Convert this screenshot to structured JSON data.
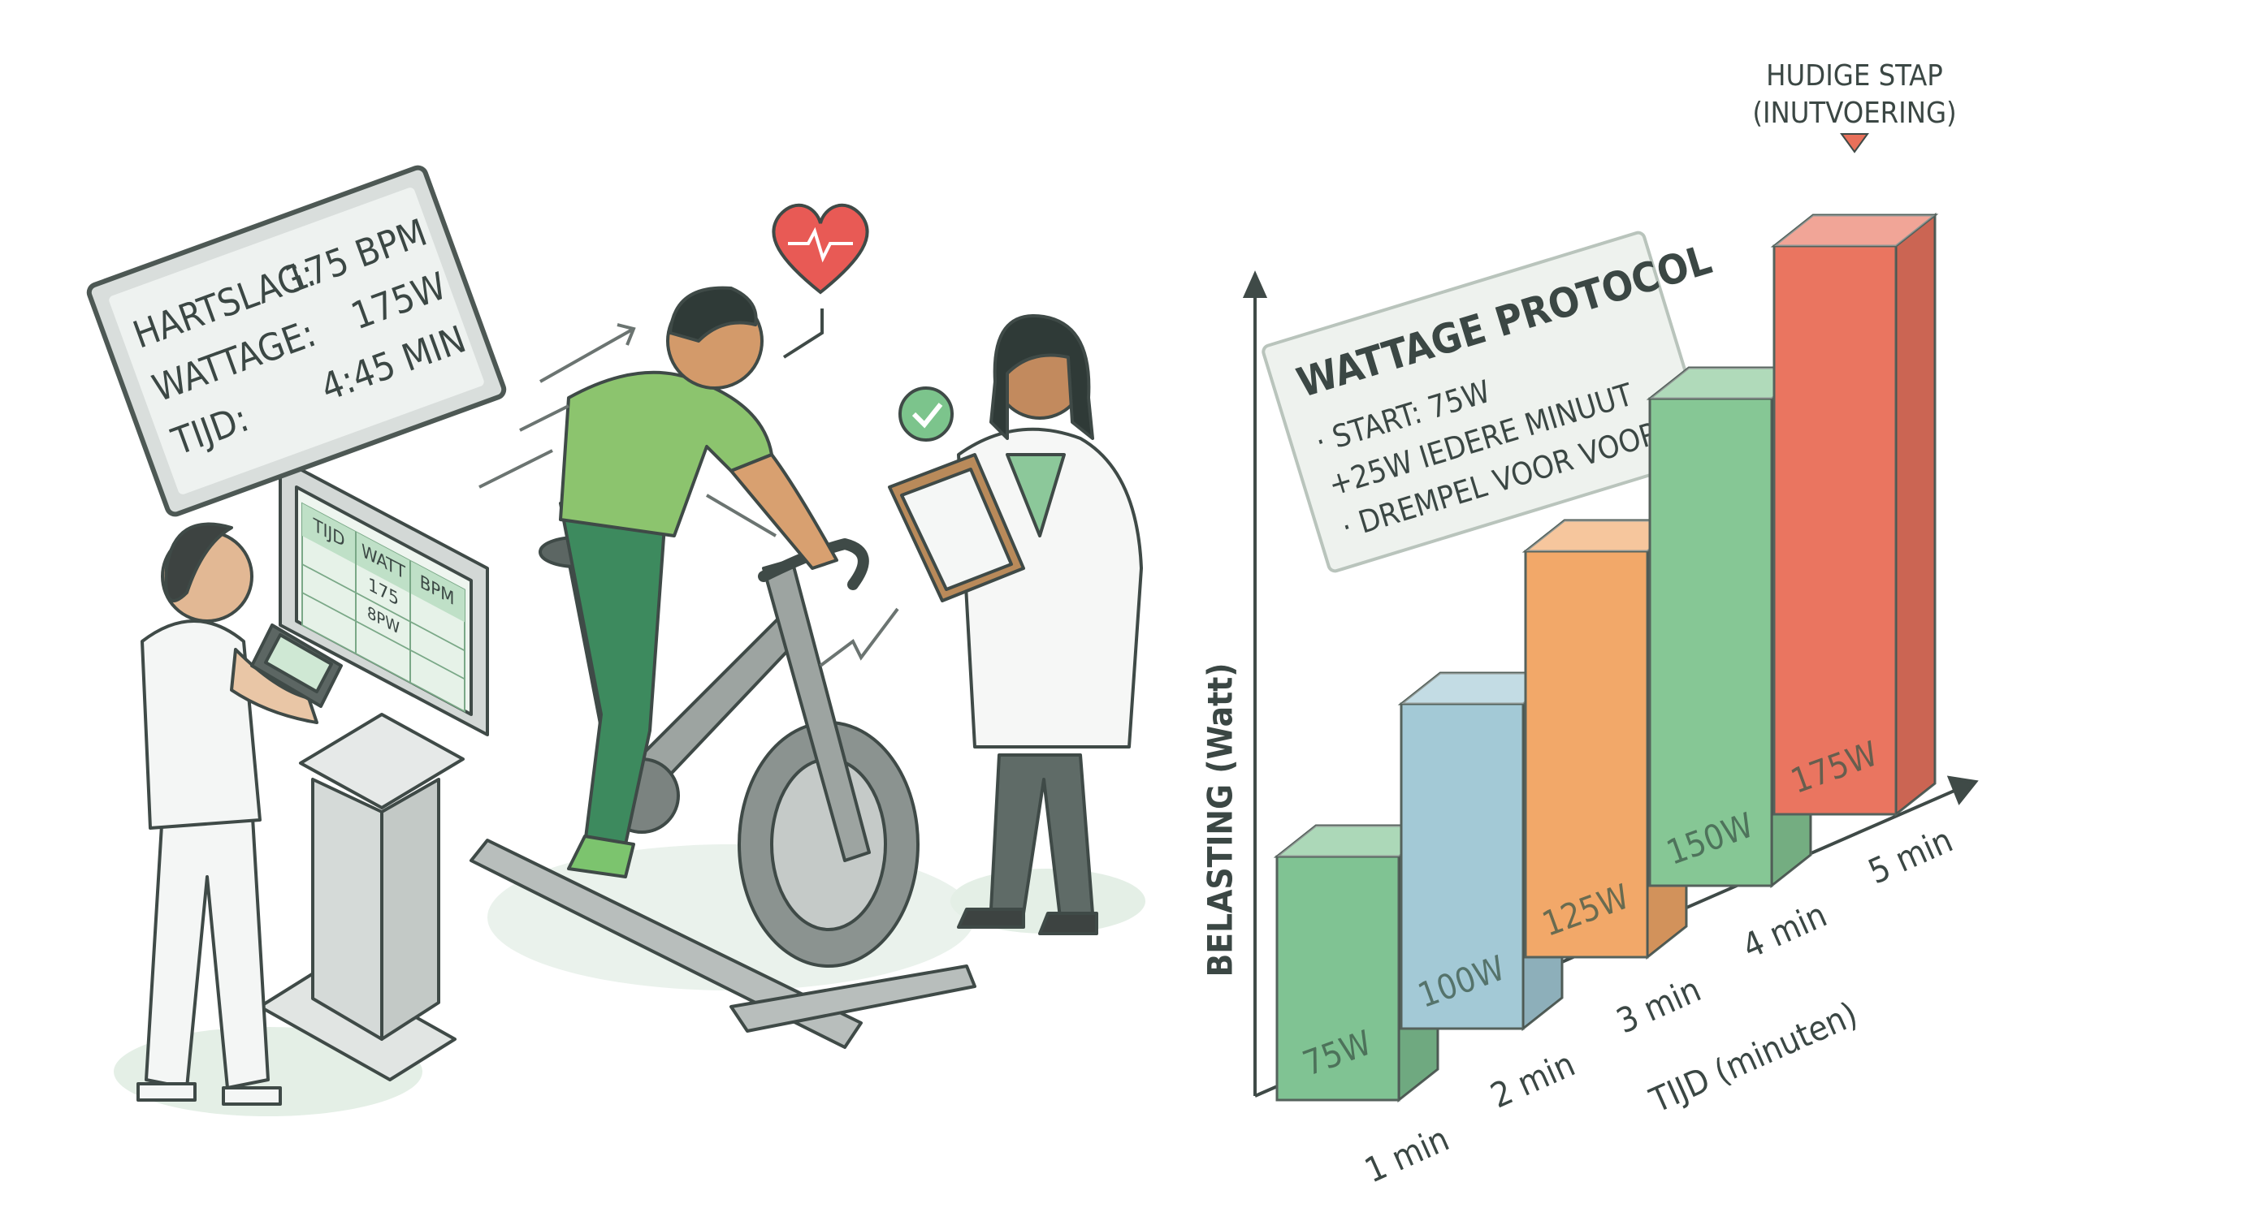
{
  "display": {
    "lines": [
      [
        "HARTSLAG:",
        "175 BPM"
      ],
      [
        "WATTAGE:",
        "175W"
      ],
      [
        "TIJD:",
        "4:45 MIN"
      ]
    ]
  },
  "screen_table": {
    "header": [
      "TIJD",
      "WATT",
      "BPM"
    ],
    "cells": [
      "175",
      "8PW"
    ]
  },
  "protocol": {
    "title": "WATTAGE PROTOCOL",
    "items": [
      "· START: 75W",
      "+25W IEDERE MINUUT",
      "· DREMPEL VOOR VOORTGNG"
    ]
  },
  "chart_data": {
    "type": "bar",
    "categories": [
      "1 min",
      "2 min",
      "3 min",
      "4 min",
      "5 min"
    ],
    "values": [
      75,
      100,
      125,
      150,
      175
    ],
    "value_labels": [
      "75W",
      "100W",
      "125W",
      "150W",
      "175W"
    ],
    "colors": [
      "#80c393",
      "#a3c9d6",
      "#f2a869",
      "#86c795",
      "#ea7560"
    ],
    "ylabel": "BELASTING (Watt)",
    "xlabel": "TIJD (minuten)",
    "annotation": [
      "HUDIGE STAP",
      "(INUTVOERING)"
    ],
    "ylim": [
      0,
      200
    ]
  }
}
